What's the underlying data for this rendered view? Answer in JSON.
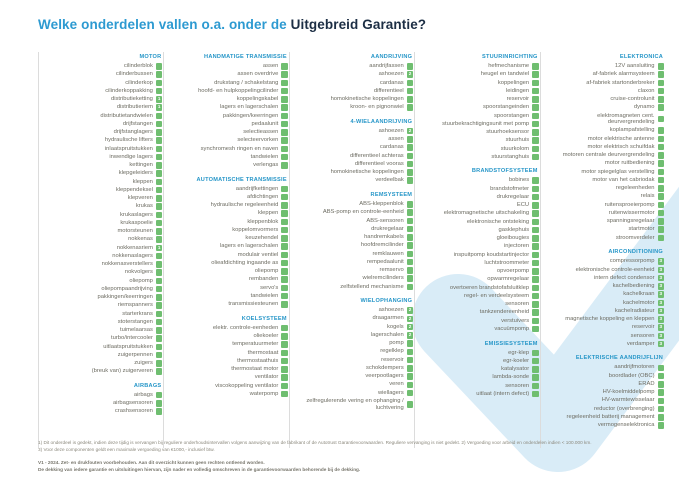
{
  "title": {
    "regular": "Welke onderdelen vallen o.a. onder de ",
    "bold": "Uitgebreid Garantie?"
  },
  "colors": {
    "title_light_blue": "#2d9ad1",
    "title_dark_navy": "#1c2e44",
    "section_header_blue": "#2696c8",
    "item_text_gray": "#6d6c62",
    "coverage_green": "#6fbe70",
    "divider_gray": "#dcdcdc",
    "watermark_light_blue": "#d9ecf7"
  },
  "coverage_icon": "green-check-box",
  "columns": [
    {
      "sections": [
        {
          "header": "MOTOR",
          "items": [
            "cilinderblok",
            "cilinderbussen",
            "cilinderkop",
            "cilinderkoppakking",
            [
              "distributieketting",
              "1"
            ],
            [
              "distributieriem",
              "1"
            ],
            "distributietandwielen",
            "drijfstangen",
            "drijfstanglagers",
            "hydraulische lifters",
            "inlaatspruitstukken",
            "inwendige lagers",
            "kettingen",
            "klepgeleiders",
            "kleppen",
            "kleppendeksel",
            "klepveren",
            "krukas",
            "krukaslagers",
            "krukaspoelie",
            "motorsteunen",
            "nokkenas",
            [
              "nokkenasriem",
              "1"
            ],
            "nokkenaslagers",
            "nokkenasverstellers",
            "nokvolgers",
            "oliepomp",
            "oliepompaandrijving",
            "pakkingen/keerringen",
            "riemspanners",
            "starterkrans",
            "stoterstangen",
            "tuimelaarsas",
            "turbo/intercooler",
            "uitlaatspruitstukken",
            "zuigerpennen",
            "zuigers",
            "(breuk van) zuigerveren"
          ]
        },
        {
          "header": "AIRBAGS",
          "items": [
            "airbags",
            "airbagsensoren",
            "crashsensoren"
          ]
        }
      ]
    },
    {
      "sections": [
        {
          "header": "HANDMATIGE TRANSMISSIE",
          "items": [
            "assen",
            "assen overdrive",
            "drukstang / schakelstang",
            "hoofd- en hulpkoppelingcilinder",
            "koppelingskabel",
            "lagers en lagerschalen",
            "pakkingen/keerringen",
            "pedaalunit",
            "selectieassen",
            "selecteervorken",
            "synchromesh ringen en naven",
            "tandwielen",
            "verlengas"
          ]
        },
        {
          "header": "AUTOMATISCHE TRANSMISSIE",
          "items": [
            "aandrijfkettingen",
            "afdichtingen",
            "hydraulische regeleenheid",
            "kleppen",
            "kleppenblok",
            "koppelomvormers",
            "keuzehendel",
            "lagers en lagerschalen",
            "modulair ventiel",
            "olieafdichting ingaande as",
            "oliepomp",
            "rembanden",
            "servo's",
            "tandwielen",
            "transmissiesteunen"
          ]
        },
        {
          "header": "KOELSYSTEEM",
          "items": [
            "elektr. controle-eenheden",
            "oliekoeler",
            "temperatuurmeter",
            "thermostaat",
            "thermostaathuis",
            "thermostaat motor",
            "ventilator",
            "viscokoppeling ventilator",
            "waterpomp"
          ]
        }
      ]
    },
    {
      "sections": [
        {
          "header": "AANDRIJVING",
          "items": [
            "aandrijfassen",
            [
              "ashoezen",
              "2"
            ],
            "cardanas",
            "differentieel",
            "homokinetische koppelingen",
            "kroon- en pignonwiel"
          ]
        },
        {
          "header": "4-WIELAANDRIJVING",
          "items": [
            [
              "ashoezen",
              "2"
            ],
            "assen",
            "cardanas",
            "differentieel achteras",
            "differentieel vooras",
            "homokinetische koppelingen",
            "verdeelbak"
          ]
        },
        {
          "header": "REMSYSTEEM",
          "items": [
            "ABS-kleppenblok",
            "ABS-pomp en controle-eenheid",
            "ABS-sensoren",
            "drukregelaar",
            "handremkabels",
            "hoofdremcilinder",
            "remklauwen",
            "rempedaalunit",
            "remservo",
            "wielremcilinders",
            "zelfstellend mechanisme"
          ]
        },
        {
          "header": "WIELOPHANGING",
          "items": [
            [
              "ashoezen",
              "2"
            ],
            [
              "draagarmen",
              "2"
            ],
            [
              "kogels",
              "2"
            ],
            [
              "lagerschalen",
              "2"
            ],
            "pomp",
            "regelklep",
            "reservoir",
            "schokdempers",
            "veerpootlagers",
            "veren",
            "wiellagers",
            "zelfregulerende vering en ophanging / luchtvering"
          ]
        }
      ]
    },
    {
      "sections": [
        {
          "header": "STUURINRICHTING",
          "items": [
            "hefmechanisme",
            "heugel en tandwiel",
            "koppelingen",
            "leidingen",
            "reservoir",
            "spoorstangeinden",
            "spoorstangen",
            "stuurbekrachtigingsunit met pomp",
            "stuurhoeksensor",
            "stuurhuis",
            "stuurkolom",
            "stuurstanghuis"
          ]
        },
        {
          "header": "BRANDSTOFSYSTEEM",
          "items": [
            "bobines",
            "brandstofmeter",
            "drukregelaar",
            "ECU",
            "elektromagnetische uitschakeling",
            "elektronische ontsteking",
            "gasklephuis",
            "gloeibougies",
            "injectoren",
            "inspuitpomp koudstartinjector",
            "luchtstroommeter",
            "opvoerpomp",
            "opwarmregelaar",
            "overtoeren brandstofafsluitklep",
            "regel- en verdeelsysteem",
            "sensoren",
            "tankzendereenheid",
            "verstuivers",
            "vacuümpomp"
          ]
        },
        {
          "header": "EMISSIESYSTEEM",
          "items": [
            "egr-klep",
            "egr-koeler",
            "katalysator",
            "lambda-sonde",
            "sensoren",
            "uitlaat (intern defect)"
          ]
        }
      ]
    },
    {
      "sections": [
        {
          "header": "ELEKTRONICA",
          "items": [
            "12V aansluiting",
            "af-fabriek alarmsysteem",
            "af-fabriek startonderbreker",
            "claxon",
            "cruise-controlunit",
            "dynamo",
            "elektromagneten cent. deurvergrendeling",
            "koplampafstelling",
            "motor elektrische antenne",
            "motor elektrisch schuifdak",
            "motoren centrale deurvergrendeling",
            "motor ruitbediening",
            "motor spiegelglas verstelling",
            "motor van het cabriodak",
            "regeleenheden",
            "relais",
            "ruitensproeierpomp",
            "ruitenwissermotor",
            "spanningsregelaar",
            "startmotor",
            "stroomverdeler"
          ]
        },
        {
          "header": "AIRCONDITIONING",
          "items": [
            [
              "compressorpomp",
              "3"
            ],
            [
              "elektronische controle-eenheid",
              "3"
            ],
            [
              "intern defect condensor",
              "3"
            ],
            [
              "kachelbediening",
              "3"
            ],
            [
              "kachelkraan",
              "3"
            ],
            [
              "kachelmotor",
              "3"
            ],
            [
              "kachelradiateur",
              "3"
            ],
            [
              "magnetische koppeling en kleppen",
              "3"
            ],
            [
              "reservoir",
              "3"
            ],
            [
              "sensoren",
              "3"
            ],
            [
              "verdamper",
              "3"
            ]
          ]
        },
        {
          "header": "ELEKTRISCHE AANDRIJFLIJN",
          "items": [
            "aandrijfmotoren",
            "boordlader (OBC)",
            "ERAD",
            "HV-koelmiddelpomp",
            "HV-warmtewisselaar",
            "reductor (overbrenging)",
            "regeleenheid batterij management",
            "vermogenselektronica"
          ]
        }
      ]
    }
  ],
  "footnotes": {
    "f1": "1) Dit onderdeel is gedekt, indien deze tijdig is vervangen bij reguliere onderhoudsintervallen volgens aanwijzing van de fabrikant of de Autotrust Garantievoorwaarden. Reguliere vervanging is niet gedekt. 2) Vergoeding voor arbeid en onderdelen indien < 100.000 km.",
    "f2": "3) Voor deze componenten geldt een maximale vergoeding van €1000,- inclusief btw.",
    "f3": "V1 - 2024. Zet- en drukfouten voorbehouden. Aan dit overzicht kunnen geen rechten ontleend worden.",
    "f4": "De dekking van iedere garantie en uitsluitingen hiervan, zijn nader en volledig omschreven in de garantievoorwaarden behorende bij de dekking."
  }
}
